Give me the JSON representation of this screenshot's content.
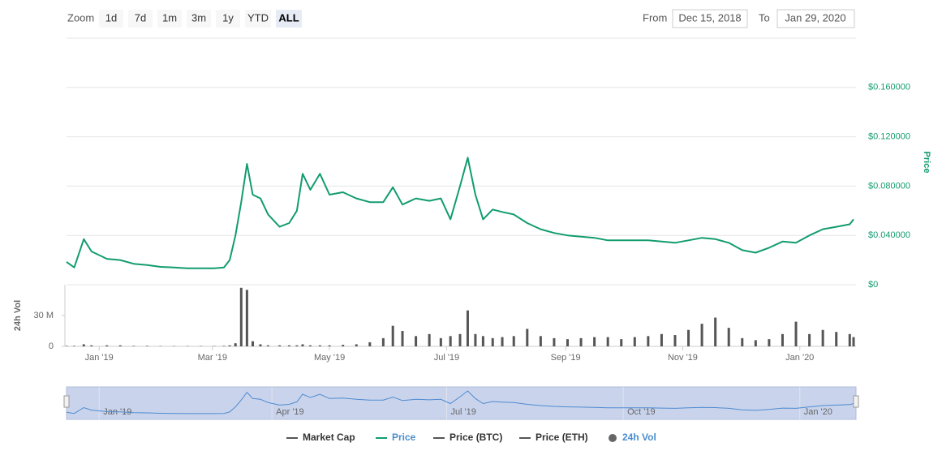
{
  "toolbar": {
    "zoom_label": "Zoom",
    "zoom_buttons": [
      "1d",
      "7d",
      "1m",
      "3m",
      "1y",
      "YTD",
      "ALL"
    ],
    "selected": "ALL",
    "from_label": "From",
    "from": "Dec 15, 2018",
    "to_label": "To",
    "to": "Jan 29, 2020"
  },
  "chart_data": [
    {
      "type": "line",
      "y_axis_label": "Price",
      "xlim": [
        "2018-12-15",
        "2020-01-29"
      ],
      "x": [
        "2018-12-15",
        "2018-12-19",
        "2018-12-24",
        "2018-12-28",
        "2019-01-05",
        "2019-01-12",
        "2019-01-19",
        "2019-01-26",
        "2019-02-02",
        "2019-02-09",
        "2019-02-16",
        "2019-02-23",
        "2019-03-02",
        "2019-03-07",
        "2019-03-10",
        "2019-03-13",
        "2019-03-16",
        "2019-03-19",
        "2019-03-22",
        "2019-03-26",
        "2019-03-30",
        "2019-04-05",
        "2019-04-10",
        "2019-04-14",
        "2019-04-17",
        "2019-04-21",
        "2019-04-26",
        "2019-05-01",
        "2019-05-08",
        "2019-05-15",
        "2019-05-22",
        "2019-05-29",
        "2019-06-03",
        "2019-06-08",
        "2019-06-15",
        "2019-06-22",
        "2019-06-28",
        "2019-07-03",
        "2019-07-08",
        "2019-07-12",
        "2019-07-16",
        "2019-07-20",
        "2019-07-25",
        "2019-07-30",
        "2019-08-05",
        "2019-08-12",
        "2019-08-19",
        "2019-08-26",
        "2019-09-02",
        "2019-09-09",
        "2019-09-16",
        "2019-09-23",
        "2019-09-30",
        "2019-10-07",
        "2019-10-14",
        "2019-10-21",
        "2019-10-28",
        "2019-11-04",
        "2019-11-11",
        "2019-11-18",
        "2019-11-25",
        "2019-12-02",
        "2019-12-09",
        "2019-12-16",
        "2019-12-23",
        "2019-12-30",
        "2020-01-06",
        "2020-01-13",
        "2020-01-20",
        "2020-01-27",
        "2020-01-29"
      ],
      "series": [
        {
          "color": "#129c70",
          "values": [
            0.0185,
            0.014,
            0.037,
            0.027,
            0.021,
            0.02,
            0.017,
            0.016,
            0.0145,
            0.014,
            0.0133,
            0.0133,
            0.0133,
            0.014,
            0.02,
            0.04,
            0.067,
            0.098,
            0.073,
            0.07,
            0.057,
            0.047,
            0.05,
            0.06,
            0.09,
            0.077,
            0.09,
            0.073,
            0.075,
            0.07,
            0.067,
            0.067,
            0.079,
            0.065,
            0.07,
            0.068,
            0.07,
            0.053,
            0.08,
            0.103,
            0.073,
            0.053,
            0.061,
            0.059,
            0.057,
            0.05,
            0.045,
            0.042,
            0.04,
            0.039,
            0.038,
            0.036,
            0.036,
            0.036,
            0.036,
            0.035,
            0.034,
            0.036,
            0.038,
            0.037,
            0.034,
            0.028,
            0.026,
            0.03,
            0.035,
            0.034,
            0.04,
            0.045,
            0.047,
            0.049,
            0.053
          ]
        }
      ],
      "ylim": [
        0,
        0.2
      ],
      "yticks": [
        {
          "value": 0,
          "label": "$0"
        },
        {
          "value": 0.04,
          "label": "$0.040000"
        },
        {
          "value": 0.08,
          "label": "$0.080000"
        },
        {
          "value": 0.12,
          "label": "$0.120000"
        },
        {
          "value": 0.16,
          "label": "$0.160000"
        }
      ],
      "grid": true
    },
    {
      "type": "bar",
      "y_axis_label": "24h Vol",
      "xlim": [
        "2018-12-15",
        "2020-01-29"
      ],
      "x": [
        "2018-12-15",
        "2018-12-19",
        "2018-12-24",
        "2018-12-28",
        "2019-01-05",
        "2019-01-12",
        "2019-01-19",
        "2019-01-26",
        "2019-02-02",
        "2019-02-09",
        "2019-02-16",
        "2019-02-23",
        "2019-03-02",
        "2019-03-07",
        "2019-03-10",
        "2019-03-13",
        "2019-03-16",
        "2019-03-19",
        "2019-03-22",
        "2019-03-26",
        "2019-03-30",
        "2019-04-05",
        "2019-04-10",
        "2019-04-14",
        "2019-04-17",
        "2019-04-21",
        "2019-04-26",
        "2019-05-01",
        "2019-05-08",
        "2019-05-15",
        "2019-05-22",
        "2019-05-29",
        "2019-06-03",
        "2019-06-08",
        "2019-06-15",
        "2019-06-22",
        "2019-06-28",
        "2019-07-03",
        "2019-07-08",
        "2019-07-12",
        "2019-07-16",
        "2019-07-20",
        "2019-07-25",
        "2019-07-30",
        "2019-08-05",
        "2019-08-12",
        "2019-08-19",
        "2019-08-26",
        "2019-09-02",
        "2019-09-09",
        "2019-09-16",
        "2019-09-23",
        "2019-09-30",
        "2019-10-07",
        "2019-10-14",
        "2019-10-21",
        "2019-10-28",
        "2019-11-04",
        "2019-11-11",
        "2019-11-18",
        "2019-11-25",
        "2019-12-02",
        "2019-12-09",
        "2019-12-16",
        "2019-12-23",
        "2019-12-30",
        "2020-01-06",
        "2020-01-13",
        "2020-01-20",
        "2020-01-27",
        "2020-01-29"
      ],
      "series": [
        {
          "color": "#555555",
          "values": [
            500000,
            500000,
            2000000,
            1000000,
            1000000,
            1000000,
            500000,
            500000,
            300000,
            300000,
            300000,
            300000,
            300000,
            500000,
            1000000,
            3000000,
            57000000,
            55000000,
            5000000,
            2000000,
            1000000,
            1000000,
            1000000,
            1000000,
            2000000,
            1000000,
            1000000,
            1000000,
            1500000,
            2000000,
            4000000,
            8000000,
            20000000,
            15000000,
            10000000,
            12000000,
            8000000,
            10000000,
            12000000,
            35000000,
            12000000,
            10000000,
            8000000,
            9000000,
            10000000,
            17000000,
            10000000,
            8000000,
            7000000,
            8000000,
            9000000,
            9000000,
            7000000,
            9000000,
            10000000,
            12000000,
            11000000,
            16000000,
            22000000,
            28000000,
            18000000,
            8000000,
            6000000,
            7000000,
            12000000,
            24000000,
            12000000,
            16000000,
            14000000,
            12000000,
            9000000
          ]
        }
      ],
      "ylim": [
        0,
        60000000
      ],
      "yticks": [
        0,
        {
          "value": 30000000,
          "label": "30 M"
        }
      ],
      "xticks": [
        {
          "value": "2019-01-01",
          "label": "Jan '19"
        },
        {
          "value": "2019-03-01",
          "label": "Mar '19"
        },
        {
          "value": "2019-05-01",
          "label": "May '19"
        },
        {
          "value": "2019-07-01",
          "label": "Jul '19"
        },
        {
          "value": "2019-09-01",
          "label": "Sep '19"
        },
        {
          "value": "2019-11-01",
          "label": "Nov '19"
        },
        {
          "value": "2020-01-01",
          "label": "Jan '20"
        }
      ]
    }
  ],
  "navigator": {
    "line_color": "#4f8ad0",
    "fill": "#c9d4ec",
    "xticks": [
      {
        "value": "2019-01-01",
        "label": "Jan '19"
      },
      {
        "value": "2019-04-01",
        "label": "Apr '19"
      },
      {
        "value": "2019-07-01",
        "label": "Jul '19"
      },
      {
        "value": "2019-10-01",
        "label": "Oct '19"
      },
      {
        "value": "2020-01-01",
        "label": "Jan '20"
      }
    ]
  },
  "legend": [
    {
      "name": "Market Cap",
      "symbol": "line",
      "color": "#555555",
      "active": false
    },
    {
      "name": "Price",
      "symbol": "line",
      "color": "#129c70",
      "active": true
    },
    {
      "name": "Price (BTC)",
      "symbol": "line",
      "color": "#555555",
      "active": false
    },
    {
      "name": "Price (ETH)",
      "symbol": "line",
      "color": "#555555",
      "active": false
    },
    {
      "name": "24h Vol",
      "symbol": "circle",
      "color": "#666666",
      "active": true
    }
  ]
}
